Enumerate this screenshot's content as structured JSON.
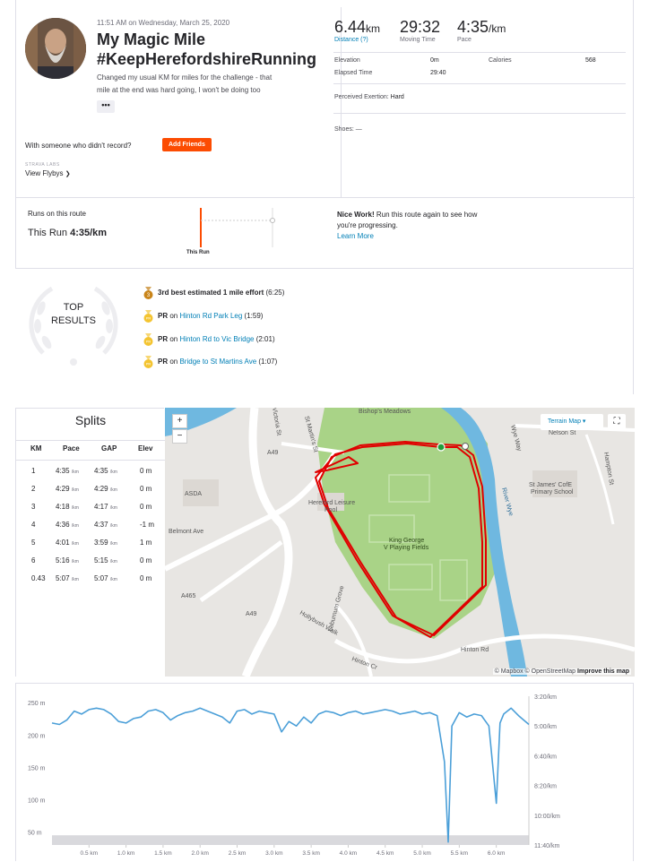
{
  "activity": {
    "datetime": "11:51 AM on Wednesday, March 25, 2020",
    "title_line1": "My Magic Mile",
    "title_line2": "#KeepHerefordshireRunning",
    "description_line1": "Changed my usual KM for miles for the challenge - that",
    "description_line2": "mile at the end was hard going, I won't be doing too",
    "more_label": "•••",
    "with_someone": "With someone who didn't record?",
    "add_friends": "Add Friends",
    "strava_labs": "STRAVA LABS",
    "view_flybys": "View Flybys"
  },
  "stats": {
    "distance": "6.44",
    "distance_unit": "km",
    "distance_label": "Distance (?)",
    "moving_time": "29:32",
    "moving_time_label": "Moving Time",
    "pace": "4:35",
    "pace_unit": "/km",
    "pace_label": "Pace",
    "elevation_label": "Elevation",
    "elevation": "0m",
    "calories_label": "Calories",
    "calories": "568",
    "elapsed_label": "Elapsed Time",
    "elapsed": "29:40",
    "exertion_label": "Perceived Exertion:",
    "exertion": "Hard",
    "shoes_label": "Shoes:",
    "shoes": "—"
  },
  "route": {
    "runs_label": "Runs on this route",
    "this_run_label": "This Run",
    "this_run_pace": "4:35/km",
    "chart_label": "This Run",
    "nice_bold": "Nice Work!",
    "nice_text": " Run this route again to see how you're progressing.",
    "learn_more": "Learn More"
  },
  "top_results": {
    "heading_line1": "TOP",
    "heading_line2": "RESULTS",
    "items": [
      {
        "medal": "3",
        "medal_color": "#c9851a",
        "prefix": "",
        "bold": "3rd best estimated 1 mile effort",
        "segment": "",
        "time": "(6:25)"
      },
      {
        "medal": "PR",
        "medal_color": "#f4c430",
        "prefix": "PR",
        "bold": "",
        "segment": "Hinton Rd Park Leg",
        "time": "(1:59)"
      },
      {
        "medal": "PR",
        "medal_color": "#f4c430",
        "prefix": "PR",
        "bold": "",
        "segment": "Hinton Rd to Vic Bridge",
        "time": "(2:01)"
      },
      {
        "medal": "PR",
        "medal_color": "#f4c430",
        "prefix": "PR",
        "bold": "",
        "segment": "Bridge to St Martins Ave",
        "time": "(1:07)"
      }
    ]
  },
  "splits": {
    "title": "Splits",
    "headers": [
      "KM",
      "Pace",
      "GAP",
      "Elev"
    ],
    "pace_unit": "/km",
    "rows": [
      {
        "km": "1",
        "pace": "4:35",
        "gap": "4:35",
        "elev": "0 m"
      },
      {
        "km": "2",
        "pace": "4:29",
        "gap": "4:29",
        "elev": "0 m"
      },
      {
        "km": "3",
        "pace": "4:18",
        "gap": "4:17",
        "elev": "0 m"
      },
      {
        "km": "4",
        "pace": "4:36",
        "gap": "4:37",
        "elev": "-1 m"
      },
      {
        "km": "5",
        "pace": "4:01",
        "gap": "3:59",
        "elev": "1 m"
      },
      {
        "km": "6",
        "pace": "5:16",
        "gap": "5:15",
        "elev": "0 m"
      },
      {
        "km": "0.43",
        "pace": "5:07",
        "gap": "5:07",
        "elev": "0 m"
      }
    ]
  },
  "map": {
    "zoom_in": "+",
    "zoom_out": "−",
    "terrain_label": "Terrain Map",
    "fullscreen": "⛶",
    "labels": {
      "bishops": "Bishop's Meadows",
      "nelson": "Nelson St",
      "hampton": "Hampton St",
      "stjames1": "St James' CofE",
      "stjames2": "Primary School",
      "wye": "Wye Way",
      "river": "River Wye",
      "stmartins": "St Martin's St",
      "victoria": "Victoria St",
      "a49": "A49",
      "a465": "A465",
      "asda": "ASDA",
      "belmont": "Belmont Ave",
      "leisure1": "Hereford Leisure",
      "leisure2": "Pool",
      "park1": "King George",
      "park2": "V Playing Fields",
      "hollybush": "Hollybush Walk",
      "hinton_rd": "Hinton Rd",
      "hinton_cr": "Hinton Cr",
      "laburnum": "Laburnum Grove"
    },
    "attribution": "© Mapbox © OpenStreetMap",
    "improve": "Improve this map",
    "route_color": "#e00000"
  },
  "elevation_chart": {
    "y_left": [
      "250 m",
      "200 m",
      "150 m",
      "100 m",
      "50 m"
    ],
    "y_right": [
      "3:20/km",
      "5:00/km",
      "6:40/km",
      "8:20/km",
      "10:00/km",
      "11:40/km"
    ],
    "x_ticks": [
      "0.5 km",
      "1.0 km",
      "1.5 km",
      "2.0 km",
      "2.5 km",
      "3.0 km",
      "3.5 km",
      "4.0 km",
      "4.5 km",
      "5.0 km",
      "5.5 km",
      "6.0 km"
    ]
  },
  "chart_data": {
    "type": "line",
    "title": "",
    "xlabel": "",
    "ylabel": "",
    "x_unit": "km",
    "xlim": [
      0,
      6.44
    ],
    "series": [
      {
        "values_unit": "pace (reversed axis, 3:20/km top to 11:40/km bottom)",
        "x": [
          0,
          0.1,
          0.2,
          0.3,
          0.4,
          0.5,
          0.6,
          0.7,
          0.8,
          0.9,
          1.0,
          1.1,
          1.2,
          1.3,
          1.4,
          1.5,
          1.6,
          1.7,
          1.8,
          1.9,
          2.0,
          2.1,
          2.2,
          2.3,
          2.4,
          2.5,
          2.6,
          2.7,
          2.8,
          2.9,
          3.0,
          3.1,
          3.2,
          3.3,
          3.4,
          3.5,
          3.6,
          3.7,
          3.8,
          3.9,
          4.0,
          4.1,
          4.2,
          4.3,
          4.4,
          4.5,
          4.6,
          4.7,
          4.8,
          4.9,
          5.0,
          5.1,
          5.2,
          5.3,
          5.35,
          5.4,
          5.5,
          5.6,
          5.7,
          5.8,
          5.9,
          6.0,
          6.05,
          6.1,
          6.2,
          6.3,
          6.44
        ],
        "values_secs": [
          290,
          295,
          280,
          250,
          260,
          245,
          240,
          245,
          260,
          285,
          290,
          275,
          270,
          250,
          245,
          255,
          280,
          265,
          255,
          250,
          240,
          250,
          260,
          270,
          290,
          250,
          245,
          260,
          250,
          255,
          260,
          320,
          285,
          300,
          270,
          290,
          260,
          250,
          255,
          265,
          255,
          250,
          260,
          255,
          250,
          245,
          250,
          260,
          255,
          250,
          260,
          255,
          265,
          420,
          690,
          300,
          255,
          270,
          260,
          265,
          300,
          560,
          290,
          260,
          240,
          265,
          295
        ]
      }
    ],
    "background_elevation_m": 45,
    "y_left_range_m": [
      30,
      260
    ],
    "y_right_range_pace": [
      "3:20/km",
      "11:40/km"
    ]
  }
}
